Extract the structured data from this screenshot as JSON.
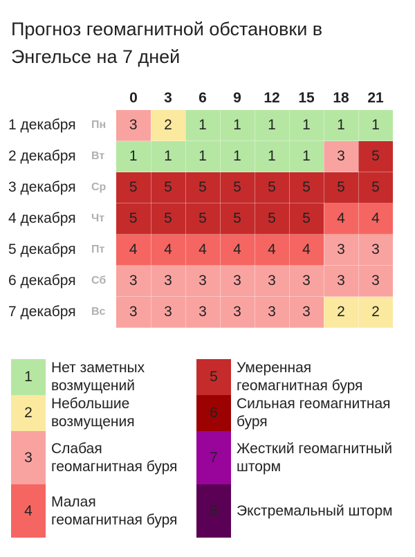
{
  "title": "Прогноз геомагнитной обстановки в Энгельсе на 7 дней",
  "hours": [
    "0",
    "3",
    "6",
    "9",
    "12",
    "15",
    "18",
    "21"
  ],
  "days": [
    {
      "date": "1 декабря",
      "weekday": "Пн",
      "values": [
        3,
        2,
        1,
        1,
        1,
        1,
        1,
        1
      ]
    },
    {
      "date": "2 декабря",
      "weekday": "Вт",
      "values": [
        1,
        1,
        1,
        1,
        1,
        1,
        3,
        5
      ]
    },
    {
      "date": "3 декабря",
      "weekday": "Ср",
      "values": [
        5,
        5,
        5,
        5,
        5,
        5,
        5,
        5
      ]
    },
    {
      "date": "4 декабря",
      "weekday": "Чт",
      "values": [
        5,
        5,
        5,
        5,
        5,
        5,
        4,
        4
      ]
    },
    {
      "date": "5 декабря",
      "weekday": "Пт",
      "values": [
        4,
        4,
        4,
        4,
        4,
        4,
        3,
        3
      ]
    },
    {
      "date": "6 декабря",
      "weekday": "Сб",
      "values": [
        3,
        3,
        3,
        3,
        3,
        3,
        3,
        3
      ]
    },
    {
      "date": "7 декабря",
      "weekday": "Вс",
      "values": [
        3,
        3,
        3,
        3,
        3,
        3,
        2,
        2
      ]
    }
  ],
  "level_colors": {
    "1": "#b5e7a3",
    "2": "#fbe9a0",
    "3": "#f9a3a0",
    "4": "#f56662",
    "5": "#c52b2b",
    "6": "#9c0202",
    "7": "#99049b",
    "8": "#5a0155"
  },
  "legend": {
    "left": [
      {
        "level": "1",
        "label": "Нет заметных возмущений"
      },
      {
        "level": "2",
        "label": "Небольшие возмущения"
      },
      {
        "level": "3",
        "label": "Слабая геомагнитная буря"
      },
      {
        "level": "4",
        "label": "Малая геомагнитная буря"
      }
    ],
    "right": [
      {
        "level": "5",
        "label": "Умеренная геомагнитная буря"
      },
      {
        "level": "6",
        "label": "Сильная геомагнитная буря"
      },
      {
        "level": "7",
        "label": "Жесткий геомагнитный шторм"
      },
      {
        "level": "8",
        "label": "Экстремальный шторм"
      }
    ]
  }
}
